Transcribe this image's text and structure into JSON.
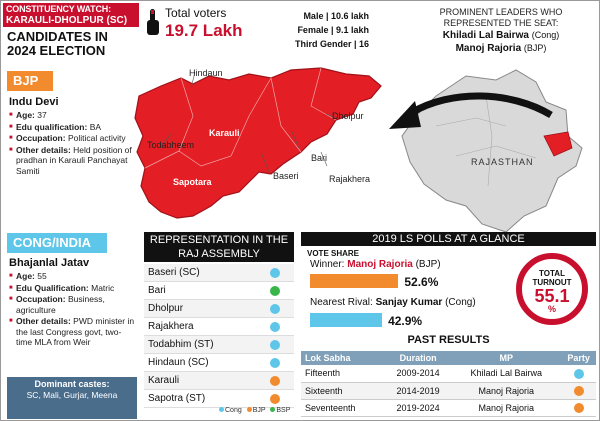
{
  "header": {
    "watch_line1": "CONSTITUENCY WATCH:",
    "watch_line2": "KARAULI-DHOLPUR (SC)",
    "candidates_title": "CANDIDATES IN 2024 ELECTION"
  },
  "bjp": {
    "tag": "BJP",
    "name": "Indu Devi",
    "details": [
      {
        "label": "Age:",
        "value": "37"
      },
      {
        "label": "Edu qualification:",
        "value": "BA"
      },
      {
        "label": "Occupation:",
        "value": "Political activity"
      },
      {
        "label": "Other details:",
        "value": "Held position of pradhan in Karauli Panchayat Samiti"
      }
    ]
  },
  "cong": {
    "tag": "CONG/INDIA",
    "name": "Bhajanlal Jatav",
    "details": [
      {
        "label": "Age:",
        "value": "55"
      },
      {
        "label": "Edu Qualification:",
        "value": "Matric"
      },
      {
        "label": "Occupation:",
        "value": "Business, agriculture"
      },
      {
        "label": "Other details:",
        "value": "PWD minister in the last Congress govt, two-time MLA from Weir"
      }
    ]
  },
  "castes": {
    "title": "Dominant castes:",
    "value": "SC, Mali, Gurjar, Meena"
  },
  "voters": {
    "label": "Total voters",
    "value": "19.7 Lakh",
    "male": "Male | 10.6 lakh",
    "female": "Female | 9.1 lakh",
    "third": "Third Gender | 16"
  },
  "map_labels": {
    "hindaun": "Hindaun",
    "karauli": "Karauli",
    "todabheem": "Todabheem",
    "sapotara": "Sapotara",
    "baseri": "Baseri",
    "bari": "Bari",
    "dholpur": "Dholpur",
    "rajakhera": "Rajakhera",
    "rajasthan": "RAJASTHAN"
  },
  "leaders": {
    "heading": "PROMINENT LEADERS WHO REPRESENTED THE SEAT:",
    "leader1_name": "Khiladi Lal Bairwa",
    "leader1_party": "(Cong)",
    "leader2_name": "Manoj Rajoria",
    "leader2_party": "(BJP)"
  },
  "representation": {
    "title": "REPRESENTATION IN THE RAJ ASSEMBLY",
    "items": [
      {
        "name": "Baseri (SC)",
        "party": "Cong"
      },
      {
        "name": "Bari",
        "party": "BSP"
      },
      {
        "name": "Dholpur",
        "party": "Cong"
      },
      {
        "name": "Rajakhera",
        "party": "Cong"
      },
      {
        "name": "Todabhim (ST)",
        "party": "Cong"
      },
      {
        "name": "Hindaun (SC)",
        "party": "Cong"
      },
      {
        "name": "Karauli",
        "party": "BJP"
      },
      {
        "name": "Sapotra (ST)",
        "party": "BJP"
      }
    ],
    "legend": [
      "Cong",
      "BJP",
      "BSP"
    ]
  },
  "colors": {
    "Cong": "#5ec6e8",
    "BJP": "#f28a2e",
    "BSP": "#3ab54a",
    "red": "#c8102e"
  },
  "polls": {
    "title": "2019 LS POLLS AT A GLANCE",
    "vote_share_label": "VOTE SHARE",
    "winner_label": "Winner:",
    "winner_name": "Manoj Rajoria",
    "winner_party": "(BJP)",
    "winner_pct": "52.6%",
    "winner_value": 52.6,
    "rival_label": "Nearest Rival:",
    "rival_name": "Sanjay Kumar",
    "rival_party": "(Cong)",
    "rival_pct": "42.9%",
    "rival_value": 42.9,
    "turnout_label": "TOTAL TURNOUT",
    "turnout_value": "55.1",
    "turnout_unit": "%"
  },
  "past_results": {
    "title": "PAST RESULTS",
    "headers": [
      "Lok Sabha",
      "Duration",
      "MP",
      "Party"
    ],
    "rows": [
      {
        "lok_sabha": "Fifteenth",
        "duration": "2009-2014",
        "mp": "Khiladi Lal Bairwa",
        "party": "Cong"
      },
      {
        "lok_sabha": "Sixteenth",
        "duration": "2014-2019",
        "mp": "Manoj Rajoria",
        "party": "BJP"
      },
      {
        "lok_sabha": "Seventeenth",
        "duration": "2019-2024",
        "mp": "Manoj Rajoria",
        "party": "BJP"
      }
    ]
  }
}
